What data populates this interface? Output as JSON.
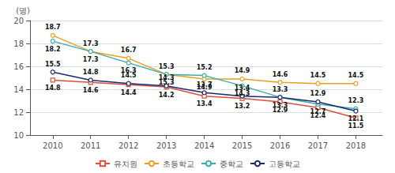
{
  "chart_data": {
    "type": "line",
    "ylabel": "(명)",
    "x": [
      2010,
      2011,
      2012,
      2013,
      2014,
      2015,
      2016,
      2017,
      2018
    ],
    "series": [
      {
        "name": "유치원",
        "color": "#d94f3d",
        "marker": "square",
        "values": [
          14.8,
          14.6,
          14.4,
          14.2,
          13.4,
          13.2,
          12.9,
          12.4,
          11.5
        ]
      },
      {
        "name": "초등학교",
        "color": "#e8a020",
        "marker": "circle",
        "values": [
          18.7,
          17.3,
          16.7,
          15.3,
          14.9,
          14.9,
          14.6,
          14.5,
          14.5
        ]
      },
      {
        "name": "중학교",
        "color": "#3aada8",
        "marker": "circle",
        "values": [
          18.2,
          17.3,
          16.3,
          15.3,
          15.2,
          14.3,
          13.3,
          12.7,
          12.3
        ]
      },
      {
        "name": "고등학교",
        "color": "#1a2a6c",
        "marker": "circle",
        "values": [
          15.5,
          14.8,
          14.5,
          14.3,
          13.7,
          13.4,
          13.3,
          12.9,
          12.1
        ]
      }
    ],
    "xlim": [
      2009.4,
      2018.7
    ],
    "xticks": [
      2010,
      2011,
      2012,
      2013,
      2014,
      2015,
      2016,
      2017,
      2018
    ],
    "ylim": [
      10,
      20
    ],
    "yticks": [
      10,
      12,
      14,
      16,
      18,
      20
    ],
    "grid": true,
    "legend": "bottom",
    "data_labels": true
  }
}
